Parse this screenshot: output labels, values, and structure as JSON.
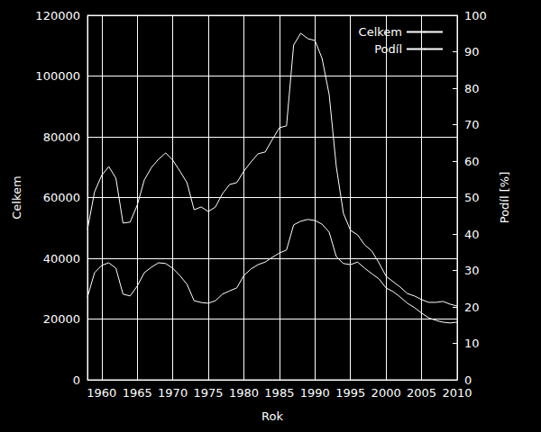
{
  "chart_data": {
    "type": "line",
    "x_label": "Rok",
    "y_label": "Celkem",
    "y2_label": "Podíl [%]",
    "x": [
      1958,
      1959,
      1960,
      1961,
      1962,
      1963,
      1964,
      1965,
      1966,
      1967,
      1968,
      1969,
      1970,
      1971,
      1972,
      1973,
      1974,
      1975,
      1976,
      1977,
      1978,
      1979,
      1980,
      1981,
      1982,
      1983,
      1984,
      1985,
      1986,
      1987,
      1988,
      1989,
      1990,
      1991,
      1992,
      1993,
      1994,
      1995,
      1996,
      1997,
      1998,
      1999,
      2000,
      2001,
      2002,
      2003,
      2004,
      2005,
      2006,
      2007,
      2008,
      2009,
      2010
    ],
    "series": [
      {
        "name": "Celkem",
        "color": "#ffffff",
        "axis": "y",
        "values": [
          49500,
          61900,
          67300,
          70200,
          66400,
          51600,
          51900,
          57500,
          65800,
          69900,
          72600,
          74700,
          72300,
          68700,
          64900,
          56000,
          56900,
          55400,
          56900,
          61300,
          64300,
          64900,
          68700,
          71700,
          74400,
          75000,
          79100,
          83000,
          83600,
          110200,
          114100,
          112300,
          111700,
          105800,
          93900,
          70200,
          54800,
          49200,
          47700,
          44400,
          42400,
          38500,
          34100,
          32300,
          30500,
          28400,
          27600,
          26400,
          25500,
          25500,
          25800,
          24900,
          24300
        ]
      },
      {
        "name": "Podíl",
        "color": "#ffffff",
        "axis": "y2",
        "values": [
          22.7,
          29.4,
          31.4,
          32.1,
          30.6,
          23.5,
          23.0,
          25.7,
          29.4,
          30.9,
          32.1,
          31.9,
          30.6,
          28.6,
          26.2,
          21.7,
          21.2,
          21.0,
          21.7,
          23.5,
          24.4,
          25.2,
          28.6,
          30.4,
          31.6,
          32.3,
          33.6,
          34.8,
          35.6,
          42.5,
          43.5,
          44.0,
          43.7,
          42.7,
          40.5,
          33.8,
          31.9,
          31.6,
          32.3,
          30.6,
          29.1,
          27.7,
          25.2,
          24.2,
          22.7,
          21.0,
          19.8,
          18.3,
          17.0,
          16.3,
          15.8,
          15.6,
          15.8
        ]
      }
    ],
    "xlim": [
      1958,
      2010
    ],
    "xticks": [
      1960,
      1965,
      1970,
      1975,
      1980,
      1985,
      1990,
      1995,
      2000,
      2005,
      2010
    ],
    "ylim": [
      0,
      120000
    ],
    "yticks": [
      0,
      20000,
      40000,
      60000,
      80000,
      100000,
      120000
    ],
    "y2lim": [
      0,
      100
    ],
    "y2ticks": [
      0,
      10,
      20,
      30,
      40,
      50,
      60,
      70,
      80,
      90,
      100
    ],
    "grid": true,
    "legend": "upper right"
  }
}
